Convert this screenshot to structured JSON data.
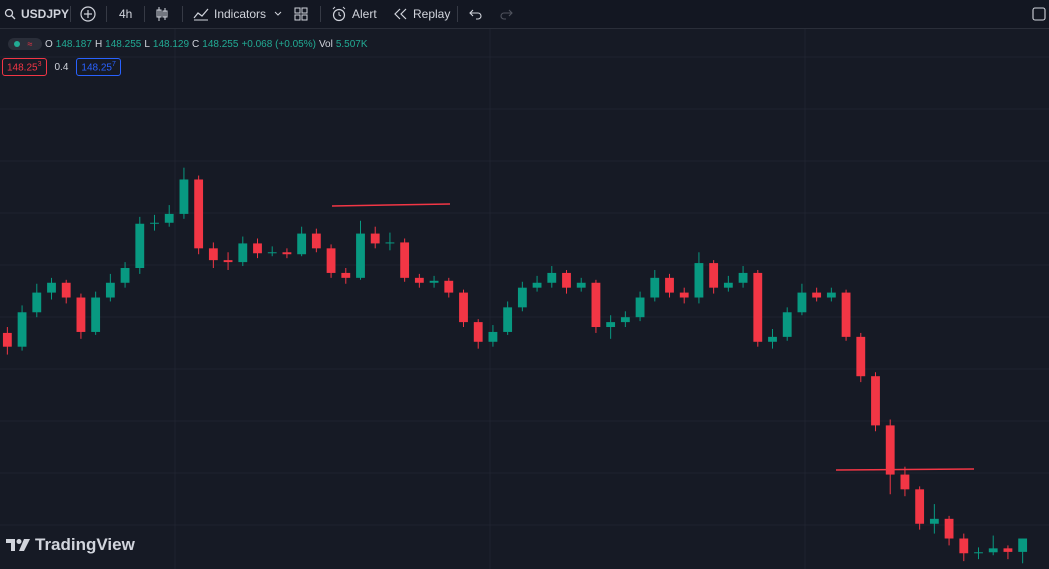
{
  "toolbar": {
    "symbol": "USDJPY",
    "interval": "4h",
    "indicators": "Indicators",
    "alert": "Alert",
    "replay": "Replay"
  },
  "legend": {
    "o_label": "O",
    "open": "148.187",
    "h_label": "H",
    "high": "148.255",
    "l_label": "L",
    "low": "148.129",
    "c_label": "C",
    "close": "148.255",
    "change": "+0.068 (+0.05%)",
    "vol_label": "Vol",
    "volume": "5.507K"
  },
  "quotes": {
    "bid": "148.25",
    "bid_fraction": "3",
    "spread": "0.4",
    "ask": "148.25",
    "ask_fraction": "7"
  },
  "watermark": "TradingView",
  "chart_data": {
    "type": "candlestick",
    "ylim": [
      148.1,
      150.85
    ],
    "up_color": "#089981",
    "down_color": "#f23645",
    "candles": [
      [
        149.3,
        149.33,
        149.19,
        149.23
      ],
      [
        149.23,
        149.44,
        149.21,
        149.405
      ],
      [
        149.405,
        149.55,
        149.38,
        149.505
      ],
      [
        149.505,
        149.58,
        149.47,
        149.555
      ],
      [
        149.555,
        149.57,
        149.45,
        149.48
      ],
      [
        149.48,
        149.5,
        149.27,
        149.305
      ],
      [
        149.305,
        149.51,
        149.29,
        149.48
      ],
      [
        149.48,
        149.6,
        149.46,
        149.555
      ],
      [
        149.555,
        149.66,
        149.53,
        149.63
      ],
      [
        149.63,
        149.89,
        149.6,
        149.855
      ],
      [
        149.855,
        149.9,
        149.82,
        149.86
      ],
      [
        149.86,
        149.95,
        149.84,
        149.905
      ],
      [
        149.905,
        150.14,
        149.88,
        150.08
      ],
      [
        150.08,
        150.1,
        149.7,
        149.73
      ],
      [
        149.73,
        149.76,
        149.63,
        149.67
      ],
      [
        149.67,
        149.71,
        149.62,
        149.66
      ],
      [
        149.66,
        149.79,
        149.64,
        149.755
      ],
      [
        149.755,
        149.78,
        149.68,
        149.705
      ],
      [
        149.705,
        149.74,
        149.69,
        149.71
      ],
      [
        149.71,
        149.73,
        149.68,
        149.7
      ],
      [
        149.7,
        149.84,
        149.69,
        149.805
      ],
      [
        149.805,
        149.83,
        149.71,
        149.73
      ],
      [
        149.73,
        149.75,
        149.58,
        149.605
      ],
      [
        149.605,
        149.63,
        149.55,
        149.58
      ],
      [
        149.58,
        149.87,
        149.57,
        149.805
      ],
      [
        149.805,
        149.84,
        149.73,
        149.755
      ],
      [
        149.755,
        149.81,
        149.72,
        149.76
      ],
      [
        149.76,
        149.78,
        149.56,
        149.58
      ],
      [
        149.58,
        149.6,
        149.53,
        149.555
      ],
      [
        149.555,
        149.59,
        149.53,
        149.565
      ],
      [
        149.565,
        149.58,
        149.48,
        149.505
      ],
      [
        149.505,
        149.52,
        149.33,
        149.355
      ],
      [
        149.355,
        149.37,
        149.22,
        149.255
      ],
      [
        149.255,
        149.34,
        149.23,
        149.305
      ],
      [
        149.305,
        149.46,
        149.29,
        149.43
      ],
      [
        149.43,
        149.56,
        149.41,
        149.53
      ],
      [
        149.53,
        149.59,
        149.51,
        149.555
      ],
      [
        149.555,
        149.64,
        149.53,
        149.605
      ],
      [
        149.605,
        149.62,
        149.5,
        149.53
      ],
      [
        149.53,
        149.58,
        149.51,
        149.555
      ],
      [
        149.555,
        149.57,
        149.3,
        149.33
      ],
      [
        149.33,
        149.39,
        149.27,
        149.355
      ],
      [
        149.355,
        149.41,
        149.33,
        149.38
      ],
      [
        149.38,
        149.51,
        149.36,
        149.48
      ],
      [
        149.48,
        149.62,
        149.46,
        149.58
      ],
      [
        149.58,
        149.6,
        149.48,
        149.505
      ],
      [
        149.505,
        149.53,
        149.45,
        149.48
      ],
      [
        149.48,
        149.71,
        149.45,
        149.655
      ],
      [
        149.655,
        149.67,
        149.5,
        149.53
      ],
      [
        149.53,
        149.59,
        149.51,
        149.555
      ],
      [
        149.555,
        149.64,
        149.53,
        149.605
      ],
      [
        149.605,
        149.62,
        149.23,
        149.255
      ],
      [
        149.255,
        149.32,
        149.22,
        149.28
      ],
      [
        149.28,
        149.43,
        149.26,
        149.405
      ],
      [
        149.405,
        149.55,
        149.39,
        149.505
      ],
      [
        149.505,
        149.53,
        149.46,
        149.48
      ],
      [
        149.48,
        149.53,
        149.46,
        149.505
      ],
      [
        149.505,
        149.52,
        149.26,
        149.28
      ],
      [
        149.28,
        149.3,
        149.05,
        149.08
      ],
      [
        149.08,
        149.1,
        148.8,
        148.83
      ],
      [
        148.83,
        148.86,
        148.48,
        148.58
      ],
      [
        148.58,
        148.62,
        148.47,
        148.505
      ],
      [
        148.505,
        148.52,
        148.3,
        148.33
      ],
      [
        148.33,
        148.43,
        148.28,
        148.355
      ],
      [
        148.355,
        148.37,
        148.22,
        148.255
      ],
      [
        148.255,
        148.28,
        148.14,
        148.18
      ],
      [
        148.18,
        148.21,
        148.15,
        148.185
      ],
      [
        148.185,
        148.27,
        148.17,
        148.205
      ],
      [
        148.205,
        148.22,
        148.15,
        148.187
      ],
      [
        148.187,
        148.255,
        148.129,
        148.255
      ]
    ]
  }
}
